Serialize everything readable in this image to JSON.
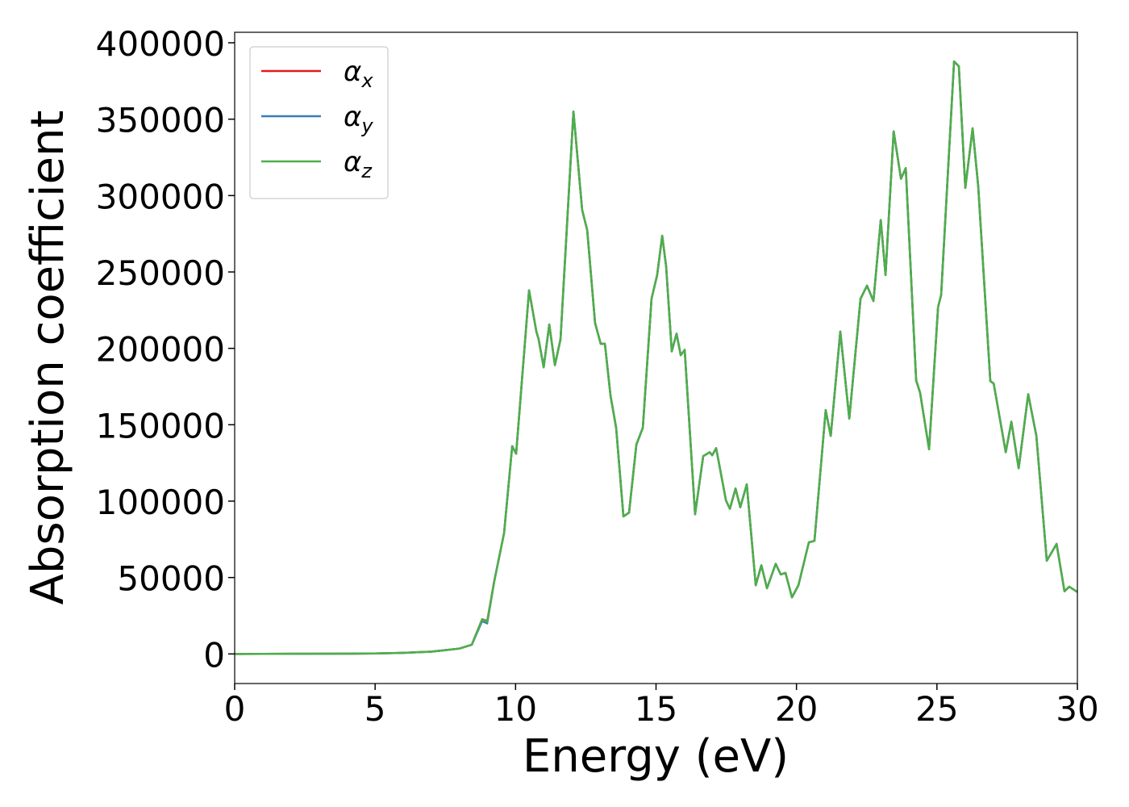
{
  "chart_data": {
    "type": "line",
    "xlabel": "Energy (eV)",
    "ylabel": "Absorption coefficient",
    "x": [
      0,
      2,
      4,
      5,
      6,
      7,
      7.5,
      8,
      8.44,
      8.81,
      8.99,
      9.24,
      9.59,
      9.88,
      10.02,
      10.48,
      10.74,
      10.82,
      11.0,
      11.2,
      11.4,
      11.6,
      12.06,
      12.37,
      12.55,
      12.83,
      13.03,
      13.18,
      13.38,
      13.58,
      13.84,
      14.04,
      14.3,
      14.53,
      14.84,
      15.04,
      15.22,
      15.36,
      15.56,
      15.73,
      15.88,
      16.02,
      16.39,
      16.68,
      16.91,
      17.0,
      17.14,
      17.49,
      17.63,
      17.83,
      18.0,
      18.23,
      18.55,
      18.75,
      18.95,
      19.26,
      19.44,
      19.61,
      19.84,
      20.07,
      20.44,
      20.64,
      21.04,
      21.22,
      21.56,
      21.88,
      22.28,
      22.51,
      22.74,
      23.0,
      23.17,
      23.46,
      23.72,
      23.89,
      24.26,
      24.4,
      24.72,
      25.04,
      25.15,
      25.61,
      25.78,
      26.01,
      26.27,
      26.47,
      26.9,
      27.02,
      27.45,
      27.65,
      27.91,
      28.25,
      28.54,
      28.91,
      29.26,
      29.54,
      29.71,
      30.0
    ],
    "series": [
      {
        "name": "αx",
        "color": "#e41a1c",
        "values": [
          0,
          100,
          200,
          300,
          700,
          1500,
          2500,
          3500,
          6000,
          22700,
          21500,
          47500,
          79000,
          136000,
          131000,
          238000,
          211000,
          206000,
          187600,
          215600,
          189000,
          206000,
          355000,
          290600,
          277400,
          216600,
          203000,
          203000,
          169000,
          148000,
          90000,
          92500,
          137000,
          148000,
          232500,
          248000,
          273700,
          253600,
          198000,
          209600,
          195500,
          199000,
          91400,
          129500,
          132000,
          130000,
          134700,
          100400,
          95000,
          108300,
          96000,
          111000,
          45000,
          58000,
          43000,
          59000,
          52000,
          53000,
          37000,
          45000,
          73000,
          74000,
          159600,
          142700,
          211000,
          154000,
          232500,
          241000,
          231000,
          284000,
          248000,
          342000,
          311000,
          318000,
          179000,
          171000,
          134000,
          227000,
          235000,
          387800,
          384600,
          305000,
          344000,
          306000,
          178600,
          177000,
          132000,
          152000,
          121500,
          170000,
          142700,
          61000,
          72000,
          41000,
          44000,
          40500
        ]
      },
      {
        "name": "αy",
        "color": "#377eb8",
        "values": [
          0,
          100,
          200,
          300,
          700,
          1500,
          2500,
          3500,
          6000,
          21500,
          20000,
          47500,
          79000,
          136000,
          131000,
          238000,
          211000,
          206000,
          187600,
          215600,
          189000,
          206000,
          355000,
          290600,
          277400,
          216600,
          203000,
          203000,
          169000,
          148000,
          90000,
          92500,
          137000,
          148000,
          232500,
          248000,
          273700,
          253600,
          198000,
          209600,
          195500,
          199000,
          91400,
          129500,
          132000,
          130000,
          134700,
          100400,
          95000,
          108300,
          96000,
          111000,
          45000,
          58000,
          43000,
          59000,
          52000,
          53000,
          37000,
          45000,
          73000,
          74000,
          159600,
          142700,
          211000,
          154000,
          232500,
          241000,
          231000,
          284000,
          248000,
          342000,
          311000,
          318000,
          179000,
          171000,
          134000,
          227000,
          235000,
          387800,
          384600,
          305000,
          344000,
          306000,
          178600,
          177000,
          132000,
          152000,
          121500,
          170000,
          142700,
          61000,
          72000,
          41000,
          44000,
          40500
        ]
      },
      {
        "name": "αz",
        "color": "#4daf4a",
        "values": [
          0,
          100,
          200,
          300,
          700,
          1500,
          2500,
          3500,
          6000,
          22700,
          21000,
          47500,
          79000,
          136000,
          131000,
          238000,
          211000,
          206000,
          187600,
          215600,
          189000,
          206000,
          355000,
          290600,
          277400,
          216600,
          203000,
          203000,
          169000,
          148000,
          90000,
          92500,
          137000,
          148000,
          232500,
          248000,
          273700,
          253600,
          198000,
          209600,
          195500,
          199000,
          91400,
          129500,
          132000,
          130000,
          134700,
          100400,
          95000,
          108300,
          96000,
          111000,
          45000,
          58000,
          43000,
          59000,
          52000,
          53000,
          37000,
          45000,
          73000,
          74000,
          159600,
          142700,
          211000,
          154000,
          232500,
          241000,
          231000,
          284000,
          248000,
          342000,
          311000,
          318000,
          179000,
          171000,
          134000,
          227000,
          235000,
          387800,
          384600,
          305000,
          344000,
          306000,
          178600,
          177000,
          132000,
          152000,
          121500,
          170000,
          142700,
          61000,
          72000,
          41000,
          44000,
          40500
        ]
      }
    ],
    "xlim": [
      0,
      30
    ],
    "ylim": [
      -19375,
      406875
    ],
    "xticks": [
      0,
      5,
      10,
      15,
      20,
      25,
      30
    ],
    "yticks": [
      0,
      50000,
      100000,
      150000,
      200000,
      250000,
      300000,
      350000,
      400000
    ],
    "legend": "upper left"
  }
}
